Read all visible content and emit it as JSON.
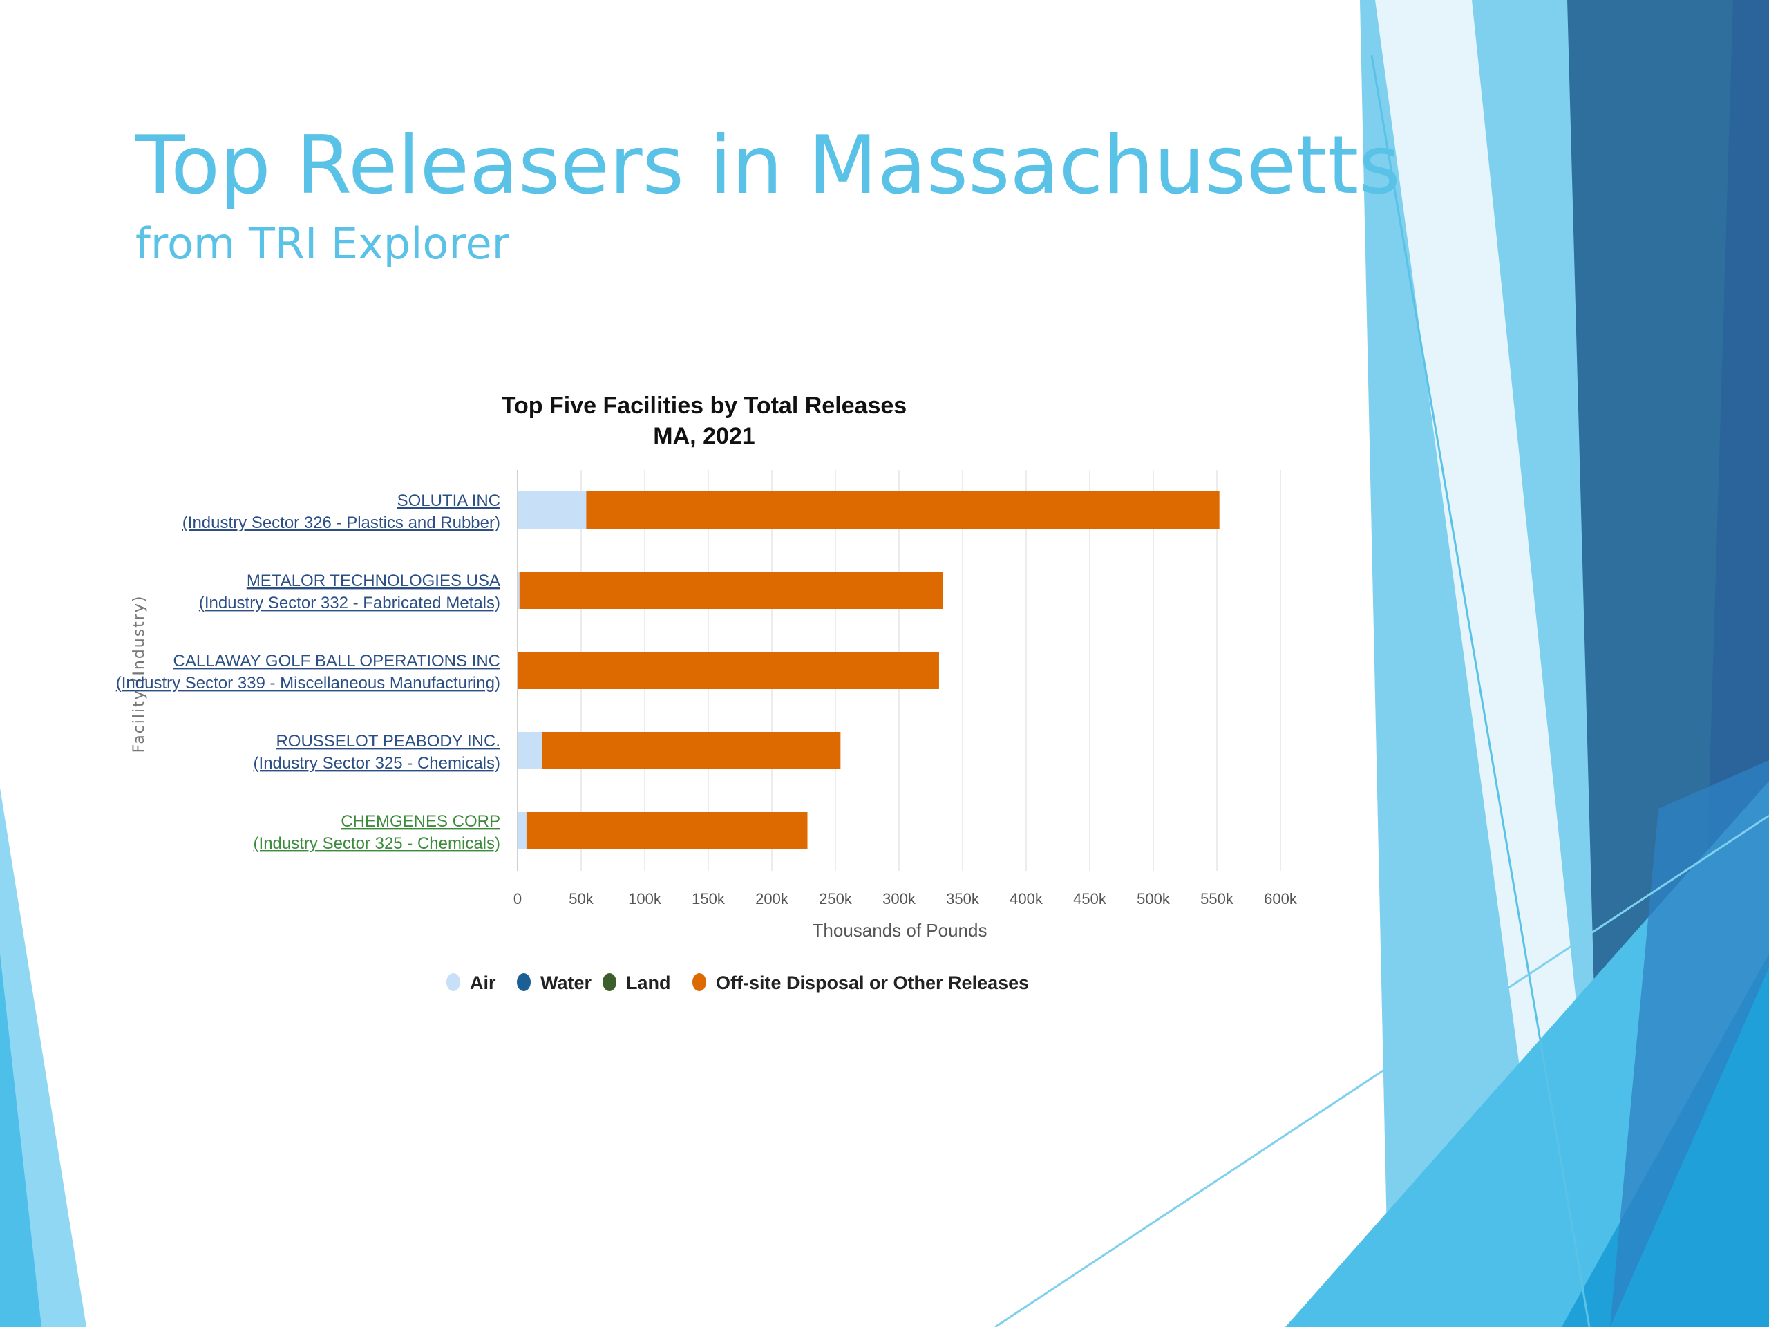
{
  "slide": {
    "title": "Top Releasers in Massachusetts",
    "subtitle": "from TRI Explorer"
  },
  "theme": {
    "title_color": "#5bc2e7",
    "decor_colors": [
      "#2e6f9e",
      "#2f82c4",
      "#1fa0d8",
      "#4dbfe8",
      "#7fd0ee",
      "#bfe6f6"
    ]
  },
  "chart_data": {
    "type": "bar",
    "orientation": "horizontal",
    "stacked": true,
    "title": "Top Five Facilities by Total Releases",
    "subtitle": "MA, 2021",
    "xlabel": "Thousands of Pounds",
    "ylabel": "Facility (Industry)",
    "xlim": [
      0,
      600000
    ],
    "x_ticks": [
      "0",
      "50k",
      "100k",
      "150k",
      "200k",
      "250k",
      "300k",
      "350k",
      "400k",
      "450k",
      "500k",
      "550k",
      "600k"
    ],
    "grid": true,
    "legend_position": "bottom",
    "categories": [
      {
        "name": "SOLUTIA INC",
        "sector": "(Industry Sector 326 - Plastics and Rubber)",
        "color": "#2b4f85"
      },
      {
        "name": "METALOR TECHNOLOGIES USA",
        "sector": "(Industry Sector 332 - Fabricated Metals)",
        "color": "#2b4f85"
      },
      {
        "name": "CALLAWAY GOLF BALL OPERATIONS INC",
        "sector": "(Industry Sector 339 - Miscellaneous Manufacturing)",
        "color": "#2b4f85"
      },
      {
        "name": "ROUSSELOT PEABODY INC.",
        "sector": "(Industry Sector 325 - Chemicals)",
        "color": "#2b4f85"
      },
      {
        "name": "CHEMGENES CORP",
        "sector": "(Industry Sector 325 - Chemicals)",
        "color": "#3c8a3c"
      }
    ],
    "series": [
      {
        "name": "Air",
        "color": "#c7e0f8",
        "values": [
          54000,
          1500,
          500,
          19000,
          7000
        ]
      },
      {
        "name": "Water",
        "color": "#1a5f96",
        "values": [
          0,
          0,
          0,
          0,
          0
        ]
      },
      {
        "name": "Land",
        "color": "#3b5e2b",
        "values": [
          0,
          0,
          0,
          0,
          0
        ]
      },
      {
        "name": "Off-site Disposal or Other Releases",
        "color": "#dd6a00",
        "values": [
          498000,
          333000,
          331000,
          235000,
          221000
        ]
      }
    ]
  }
}
